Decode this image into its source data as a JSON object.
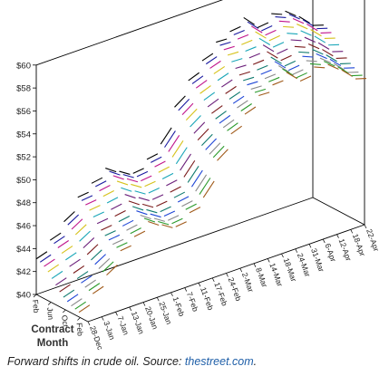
{
  "caption": {
    "text": "Forward shifts in crude oil. Source: ",
    "link": "thestreet.com",
    "tail": "."
  },
  "chart_data": {
    "type": "line",
    "title": "",
    "zlabel_line1": "Contract",
    "zlabel_line2": "Month",
    "y_tick_labels": [
      "$40",
      "$42",
      "$44",
      "$46",
      "$48",
      "$50",
      "$52",
      "$54",
      "$56",
      "$58",
      "$60"
    ],
    "ylim": [
      40,
      60
    ],
    "x_tick_labels": [
      "28-Dec",
      "3-Jan",
      "7-Jan",
      "13-Jan",
      "20-Jan",
      "25-Jan",
      "1-Feb",
      "7-Feb",
      "11-Feb",
      "17-Feb",
      "24-Feb",
      "2-Mar",
      "8-Mar",
      "14-Mar",
      "18-Mar",
      "24-Mar",
      "31-Mar",
      "6-Apr",
      "12-Apr",
      "18-Apr",
      "22-Apr"
    ],
    "z_tick_labels": [
      "Feb",
      "Jun",
      "Oct",
      "Feb"
    ],
    "series_colors": [
      "#000000",
      "#1a1aa0",
      "#c0148c",
      "#d6c21a",
      "#19a6b8",
      "#6b1f7a",
      "#7a1a1a",
      "#0e7a6e",
      "#1f46d6",
      "#8a8a8a",
      "#2a9a2a",
      "#a05a1a"
    ],
    "x": [
      "28-Dec",
      "3-Jan",
      "7-Jan",
      "13-Jan",
      "20-Jan",
      "25-Jan",
      "1-Feb",
      "7-Feb",
      "11-Feb",
      "17-Feb",
      "24-Feb",
      "2-Mar",
      "8-Mar",
      "14-Mar",
      "18-Mar",
      "24-Mar",
      "31-Mar",
      "6-Apr",
      "12-Apr",
      "18-Apr",
      "22-Apr"
    ],
    "series": [
      {
        "values": [
          43.1,
          44.3,
          45.5,
          47.2,
          48.0,
          48.9,
          48.2,
          47.6,
          48.4,
          49.3,
          52.1,
          54.0,
          55.3,
          56.5,
          57.0,
          57.8,
          56.5,
          57.3,
          57.1,
          56.2,
          55.0
        ]
      },
      {
        "values": [
          43.0,
          44.2,
          45.4,
          47.1,
          47.9,
          48.8,
          48.1,
          47.5,
          48.3,
          49.2,
          52.0,
          53.9,
          55.2,
          56.4,
          56.9,
          57.6,
          56.4,
          57.2,
          57.0,
          56.1,
          54.9
        ]
      },
      {
        "values": [
          42.8,
          44.0,
          45.2,
          46.9,
          47.7,
          48.6,
          47.9,
          47.3,
          48.1,
          49.0,
          51.8,
          53.7,
          55.0,
          56.2,
          56.7,
          57.4,
          56.2,
          57.0,
          56.8,
          55.9,
          54.7
        ]
      },
      {
        "values": [
          42.5,
          43.7,
          44.9,
          46.6,
          47.4,
          48.3,
          47.6,
          47.0,
          47.8,
          48.7,
          51.5,
          53.4,
          54.7,
          55.9,
          56.4,
          57.1,
          55.9,
          56.7,
          56.5,
          55.6,
          54.4
        ]
      },
      {
        "values": [
          42.1,
          43.3,
          44.5,
          46.2,
          47.0,
          47.9,
          47.2,
          46.6,
          47.4,
          48.3,
          51.1,
          53.0,
          54.3,
          55.5,
          56.0,
          56.7,
          55.5,
          56.3,
          56.1,
          55.2,
          54.0
        ]
      },
      {
        "values": [
          41.7,
          42.9,
          44.1,
          45.8,
          46.6,
          47.5,
          46.8,
          46.2,
          47.0,
          47.9,
          50.7,
          52.6,
          53.9,
          55.1,
          55.6,
          56.3,
          55.1,
          55.9,
          55.7,
          54.8,
          53.6
        ]
      },
      {
        "values": [
          41.3,
          42.5,
          43.7,
          45.4,
          46.2,
          47.1,
          46.4,
          45.8,
          46.6,
          47.5,
          50.3,
          52.2,
          53.5,
          54.7,
          55.2,
          55.9,
          54.7,
          55.5,
          55.3,
          54.4,
          53.2
        ]
      },
      {
        "values": [
          41.0,
          42.2,
          43.4,
          45.1,
          45.9,
          46.8,
          46.1,
          45.5,
          46.3,
          47.2,
          50.0,
          51.9,
          53.2,
          54.4,
          54.9,
          55.6,
          54.4,
          55.2,
          55.0,
          54.1,
          52.9
        ]
      },
      {
        "values": [
          40.8,
          42.0,
          43.2,
          44.9,
          45.7,
          46.6,
          45.9,
          45.3,
          46.1,
          47.0,
          49.8,
          51.7,
          53.0,
          54.2,
          54.7,
          55.4,
          54.2,
          55.0,
          54.8,
          53.9,
          52.7
        ]
      },
      {
        "values": [
          40.6,
          41.8,
          43.0,
          44.7,
          45.5,
          46.4,
          45.7,
          45.1,
          45.9,
          46.8,
          49.6,
          51.5,
          52.8,
          54.0,
          54.5,
          55.2,
          54.0,
          54.8,
          54.6,
          53.7,
          52.5
        ]
      },
      {
        "values": [
          40.5,
          41.7,
          42.9,
          44.6,
          45.4,
          46.3,
          45.6,
          45.0,
          45.8,
          46.7,
          49.5,
          51.4,
          52.7,
          53.9,
          54.4,
          55.1,
          53.9,
          54.7,
          54.5,
          53.6,
          52.4
        ]
      },
      {
        "values": [
          40.4,
          41.6,
          42.8,
          44.5,
          45.3,
          46.2,
          45.5,
          44.9,
          45.7,
          46.6,
          49.4,
          51.3,
          52.6,
          53.8,
          54.3,
          55.0,
          53.8,
          54.6,
          54.4,
          53.5,
          52.3
        ]
      }
    ]
  }
}
